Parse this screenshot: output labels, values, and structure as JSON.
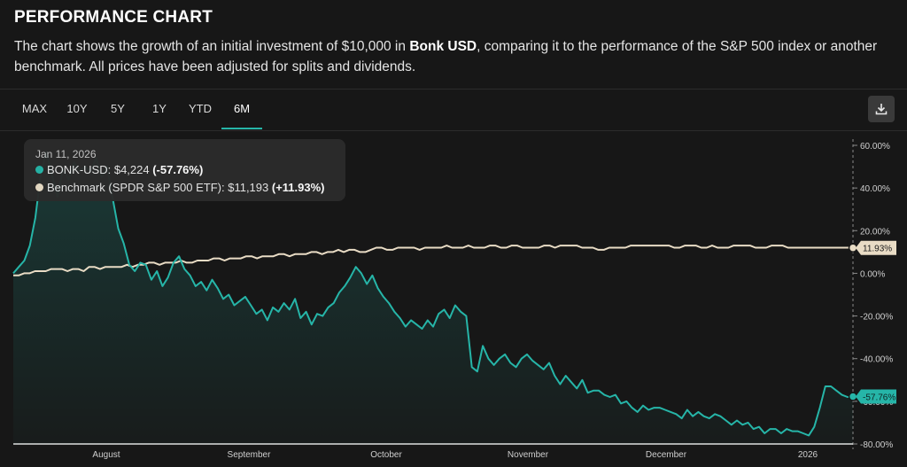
{
  "header": {
    "title": "PERFORMANCE CHART",
    "desc_before": "The chart shows the growth of an initial investment of $10,000 in ",
    "desc_bold": "Bonk USD",
    "desc_after": ", comparing it to the performance of the S&P 500 index or another benchmark. All prices have been adjusted for splits and dividends."
  },
  "tabs": [
    {
      "label": "MAX",
      "active": false
    },
    {
      "label": "10Y",
      "active": false
    },
    {
      "label": "5Y",
      "active": false
    },
    {
      "label": "1Y",
      "active": false
    },
    {
      "label": "YTD",
      "active": false
    },
    {
      "label": "6M",
      "active": true
    }
  ],
  "download_icon": "download-icon",
  "tooltip": {
    "date": "Jan 11, 2026",
    "asset_label": "BONK-USD: $4,224 ",
    "asset_change": "(-57.76%)",
    "bench_label": "Benchmark (SPDR S&P 500 ETF): $11,193 ",
    "bench_change": "(+11.93%)"
  },
  "colors": {
    "asset": "#26b5a8",
    "benchmark": "#e9dcc5",
    "background": "#171717",
    "grid": "#2a2a2a"
  },
  "chart_data": {
    "type": "area",
    "x_axis_labels": [
      "August",
      "September",
      "October",
      "November",
      "December",
      "2026"
    ],
    "y_axis_labels": [
      "60.00%",
      "40.00%",
      "20.00%",
      "0.00%",
      "-20.00%",
      "-40.00%",
      "-60.00%",
      "-80.00%"
    ],
    "ylim": [
      -80,
      60
    ],
    "grid": false,
    "end_labels": {
      "asset": "-57.76%",
      "benchmark": "11.93%"
    },
    "series": [
      {
        "name": "BONK-USD",
        "color": "#26b5a8",
        "values": [
          0,
          3,
          6,
          13,
          26,
          47,
          57,
          46,
          36,
          49,
          44,
          52,
          48,
          50,
          48,
          54,
          45,
          50,
          35,
          21,
          14,
          4,
          1,
          5,
          4,
          -3,
          1,
          -6,
          -2,
          5,
          8,
          2,
          -1,
          -6,
          -4,
          -8,
          -3,
          -7,
          -12,
          -10,
          -15,
          -13,
          -11,
          -15,
          -19,
          -17,
          -22,
          -16,
          -18,
          -14,
          -17,
          -12,
          -21,
          -18,
          -24,
          -19,
          -20,
          -16,
          -14,
          -9,
          -6,
          -2,
          3,
          0,
          -5,
          -1,
          -7,
          -11,
          -14,
          -18,
          -21,
          -25,
          -22,
          -24,
          -26,
          -22,
          -25,
          -19,
          -17,
          -21,
          -15,
          -18,
          -20,
          -44,
          -46,
          -34,
          -40,
          -43,
          -40,
          -38,
          -42,
          -44,
          -40,
          -38,
          -41,
          -43,
          -45,
          -42,
          -48,
          -52,
          -48,
          -51,
          -54,
          -50,
          -56,
          -55,
          -55,
          -57,
          -58,
          -57,
          -61,
          -60,
          -63,
          -65,
          -62,
          -64,
          -63,
          -63,
          -64,
          -65,
          -66,
          -68,
          -64,
          -67,
          -65,
          -67,
          -68,
          -66,
          -67,
          -69,
          -71,
          -69,
          -71,
          -70,
          -73,
          -72,
          -75,
          -73,
          -73,
          -75,
          -73,
          -74,
          -74,
          -75,
          -76,
          -72,
          -63,
          -53,
          -53,
          -55,
          -57,
          -58,
          -57.76
        ]
      },
      {
        "name": "Benchmark (SPDR S&P 500 ETF)",
        "color": "#e9dcc5",
        "values": [
          -1,
          -1,
          0,
          0,
          1,
          1,
          1,
          2,
          2,
          2,
          1,
          2,
          2,
          1,
          3,
          3,
          2,
          3,
          3,
          3,
          3,
          4,
          3,
          4,
          4,
          5,
          5,
          4,
          5,
          5,
          5,
          6,
          5,
          5,
          6,
          6,
          6,
          7,
          7,
          6,
          7,
          7,
          7,
          8,
          8,
          7,
          8,
          8,
          8,
          9,
          9,
          8,
          9,
          9,
          9,
          10,
          10,
          9,
          10,
          10,
          11,
          10,
          11,
          11,
          10,
          10,
          11,
          12,
          12,
          11,
          11,
          12,
          12,
          12,
          12,
          11,
          12,
          12,
          12,
          12,
          13,
          12,
          12,
          12,
          13,
          12,
          12,
          12,
          13,
          13,
          12,
          12,
          13,
          13,
          12,
          12,
          12,
          12,
          13,
          13,
          12,
          13,
          13,
          13,
          13,
          12,
          12,
          12,
          11,
          11,
          12,
          12,
          12,
          12,
          13,
          13,
          13,
          13,
          13,
          13,
          13,
          13,
          12,
          12,
          13,
          13,
          13,
          12,
          12,
          13,
          12,
          12,
          12,
          13,
          13,
          13,
          13,
          12,
          12,
          12,
          13,
          13,
          13,
          12,
          12,
          12,
          12,
          12,
          12,
          12,
          12,
          12,
          12,
          12,
          12,
          11.93
        ]
      }
    ]
  }
}
